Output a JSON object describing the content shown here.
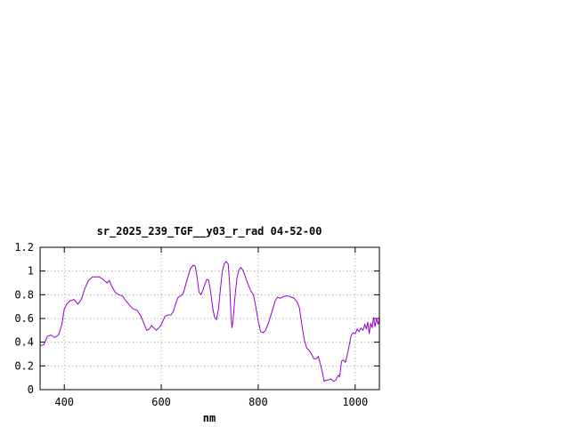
{
  "chart_data": {
    "type": "line",
    "title": "sr_2025_239_TGF__y03_r_rad 04-52-00",
    "xlabel": "nm",
    "ylabel": "",
    "xlim": [
      350,
      1050
    ],
    "ylim": [
      0,
      1.2
    ],
    "x_ticks": [
      400,
      600,
      800,
      1000
    ],
    "y_ticks": [
      0,
      0.2,
      0.4,
      0.6,
      0.8,
      1,
      1.2
    ],
    "x_tick_labels": [
      "400",
      "600",
      "800",
      "1000"
    ],
    "y_tick_labels": [
      "0",
      "0.2",
      "0.4",
      "0.6",
      "0.8",
      "1",
      "1.2"
    ],
    "grid": true,
    "legend": "none",
    "series": [
      {
        "color": "#9400d3",
        "points": [
          [
            350,
            0.37
          ],
          [
            358,
            0.38
          ],
          [
            365,
            0.45
          ],
          [
            372,
            0.46
          ],
          [
            380,
            0.44
          ],
          [
            388,
            0.46
          ],
          [
            395,
            0.55
          ],
          [
            400,
            0.68
          ],
          [
            405,
            0.72
          ],
          [
            412,
            0.75
          ],
          [
            420,
            0.76
          ],
          [
            428,
            0.72
          ],
          [
            435,
            0.76
          ],
          [
            442,
            0.85
          ],
          [
            450,
            0.92
          ],
          [
            458,
            0.95
          ],
          [
            465,
            0.95
          ],
          [
            472,
            0.95
          ],
          [
            480,
            0.93
          ],
          [
            488,
            0.9
          ],
          [
            493,
            0.92
          ],
          [
            498,
            0.87
          ],
          [
            505,
            0.82
          ],
          [
            512,
            0.8
          ],
          [
            520,
            0.79
          ],
          [
            527,
            0.75
          ],
          [
            535,
            0.71
          ],
          [
            542,
            0.68
          ],
          [
            550,
            0.67
          ],
          [
            558,
            0.62
          ],
          [
            565,
            0.55
          ],
          [
            570,
            0.5
          ],
          [
            575,
            0.51
          ],
          [
            580,
            0.54
          ],
          [
            585,
            0.52
          ],
          [
            590,
            0.5
          ],
          [
            595,
            0.52
          ],
          [
            600,
            0.55
          ],
          [
            608,
            0.62
          ],
          [
            615,
            0.63
          ],
          [
            620,
            0.63
          ],
          [
            625,
            0.66
          ],
          [
            630,
            0.73
          ],
          [
            635,
            0.78
          ],
          [
            640,
            0.79
          ],
          [
            645,
            0.81
          ],
          [
            650,
            0.88
          ],
          [
            655,
            0.95
          ],
          [
            660,
            1.02
          ],
          [
            666,
            1.05
          ],
          [
            670,
            1.04
          ],
          [
            674,
            0.95
          ],
          [
            678,
            0.82
          ],
          [
            682,
            0.8
          ],
          [
            686,
            0.84
          ],
          [
            690,
            0.89
          ],
          [
            694,
            0.93
          ],
          [
            698,
            0.92
          ],
          [
            702,
            0.82
          ],
          [
            706,
            0.69
          ],
          [
            710,
            0.61
          ],
          [
            714,
            0.59
          ],
          [
            718,
            0.68
          ],
          [
            722,
            0.85
          ],
          [
            726,
            1.0
          ],
          [
            730,
            1.06
          ],
          [
            734,
            1.08
          ],
          [
            738,
            1.06
          ],
          [
            741,
            0.9
          ],
          [
            744,
            0.62
          ],
          [
            746,
            0.52
          ],
          [
            748,
            0.58
          ],
          [
            752,
            0.78
          ],
          [
            756,
            0.94
          ],
          [
            760,
            1.01
          ],
          [
            764,
            1.03
          ],
          [
            768,
            1.01
          ],
          [
            772,
            0.97
          ],
          [
            776,
            0.92
          ],
          [
            780,
            0.88
          ],
          [
            785,
            0.83
          ],
          [
            790,
            0.8
          ],
          [
            795,
            0.7
          ],
          [
            800,
            0.58
          ],
          [
            805,
            0.49
          ],
          [
            810,
            0.48
          ],
          [
            815,
            0.5
          ],
          [
            820,
            0.55
          ],
          [
            825,
            0.61
          ],
          [
            830,
            0.68
          ],
          [
            835,
            0.75
          ],
          [
            840,
            0.78
          ],
          [
            845,
            0.77
          ],
          [
            850,
            0.78
          ],
          [
            856,
            0.79
          ],
          [
            862,
            0.79
          ],
          [
            868,
            0.78
          ],
          [
            874,
            0.77
          ],
          [
            880,
            0.74
          ],
          [
            885,
            0.69
          ],
          [
            890,
            0.55
          ],
          [
            895,
            0.42
          ],
          [
            900,
            0.35
          ],
          [
            905,
            0.33
          ],
          [
            910,
            0.3
          ],
          [
            915,
            0.26
          ],
          [
            920,
            0.26
          ],
          [
            924,
            0.28
          ],
          [
            928,
            0.22
          ],
          [
            932,
            0.15
          ],
          [
            936,
            0.07
          ],
          [
            940,
            0.08
          ],
          [
            945,
            0.08
          ],
          [
            950,
            0.09
          ],
          [
            955,
            0.07
          ],
          [
            960,
            0.08
          ],
          [
            965,
            0.12
          ],
          [
            968,
            0.11
          ],
          [
            972,
            0.24
          ],
          [
            976,
            0.25
          ],
          [
            980,
            0.23
          ],
          [
            984,
            0.3
          ],
          [
            988,
            0.38
          ],
          [
            992,
            0.46
          ],
          [
            996,
            0.48
          ],
          [
            1000,
            0.47
          ],
          [
            1004,
            0.51
          ],
          [
            1008,
            0.49
          ],
          [
            1012,
            0.52
          ],
          [
            1016,
            0.5
          ],
          [
            1020,
            0.55
          ],
          [
            1023,
            0.51
          ],
          [
            1026,
            0.57
          ],
          [
            1029,
            0.47
          ],
          [
            1032,
            0.56
          ],
          [
            1035,
            0.52
          ],
          [
            1038,
            0.61
          ],
          [
            1041,
            0.53
          ],
          [
            1044,
            0.6
          ],
          [
            1047,
            0.55
          ],
          [
            1050,
            0.6
          ]
        ]
      }
    ]
  }
}
